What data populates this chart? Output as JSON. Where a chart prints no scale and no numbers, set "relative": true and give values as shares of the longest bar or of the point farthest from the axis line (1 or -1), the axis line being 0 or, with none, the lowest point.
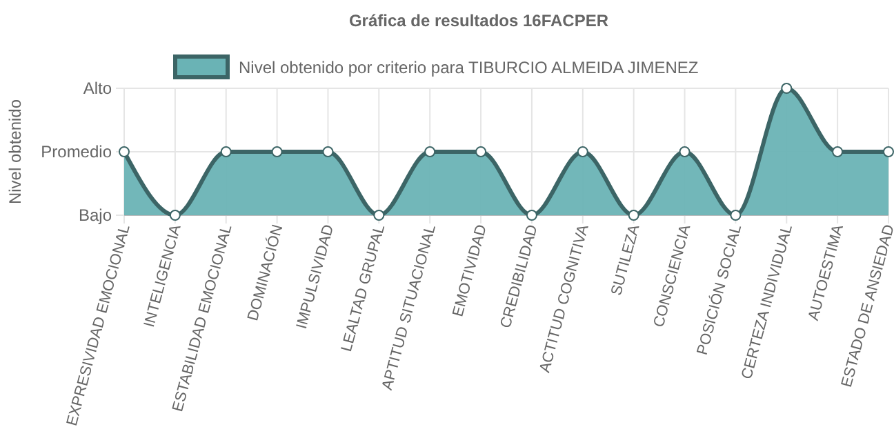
{
  "chart_data": {
    "type": "area",
    "title": "Gráfica de resultados 16FACPER",
    "ylabel": "Nivel obtenido",
    "categories": [
      "EXPRESIVIDAD EMOCIONAL",
      "INTELIGENCIA",
      "ESTABILIDAD EMOCIONAL",
      "DOMINACIÓN",
      "IMPULSIVIDAD",
      "LEALTAD GRUPAL",
      "APTITUD SITUACIONAL",
      "EMOTIVIDAD",
      "CREDIBILIDAD",
      "ACTITUD COGNITIVA",
      "SUTILEZA",
      "CONSCIENCIA",
      "POSICIÓN SOCIAL",
      "CERTEZA INDIVIDUAL",
      "AUTOESTIMA",
      "ESTADO DE ANSIEDAD"
    ],
    "series": [
      {
        "name": "Nivel obtenido por criterio para TIBURCIO ALMEIDA JIMENEZ",
        "color": "#6ab3b5",
        "values": [
          0.5,
          0,
          0.5,
          0.5,
          0.5,
          0,
          0.5,
          0.5,
          0,
          0.5,
          0,
          0.5,
          0,
          1,
          0.5,
          0.5
        ]
      }
    ],
    "relative": true,
    "annotations": [
      "Bajo",
      "Promedio",
      "Alto"
    ],
    "grid": true,
    "legend": "top",
    "marker": "circle",
    "line_style": "solid"
  }
}
